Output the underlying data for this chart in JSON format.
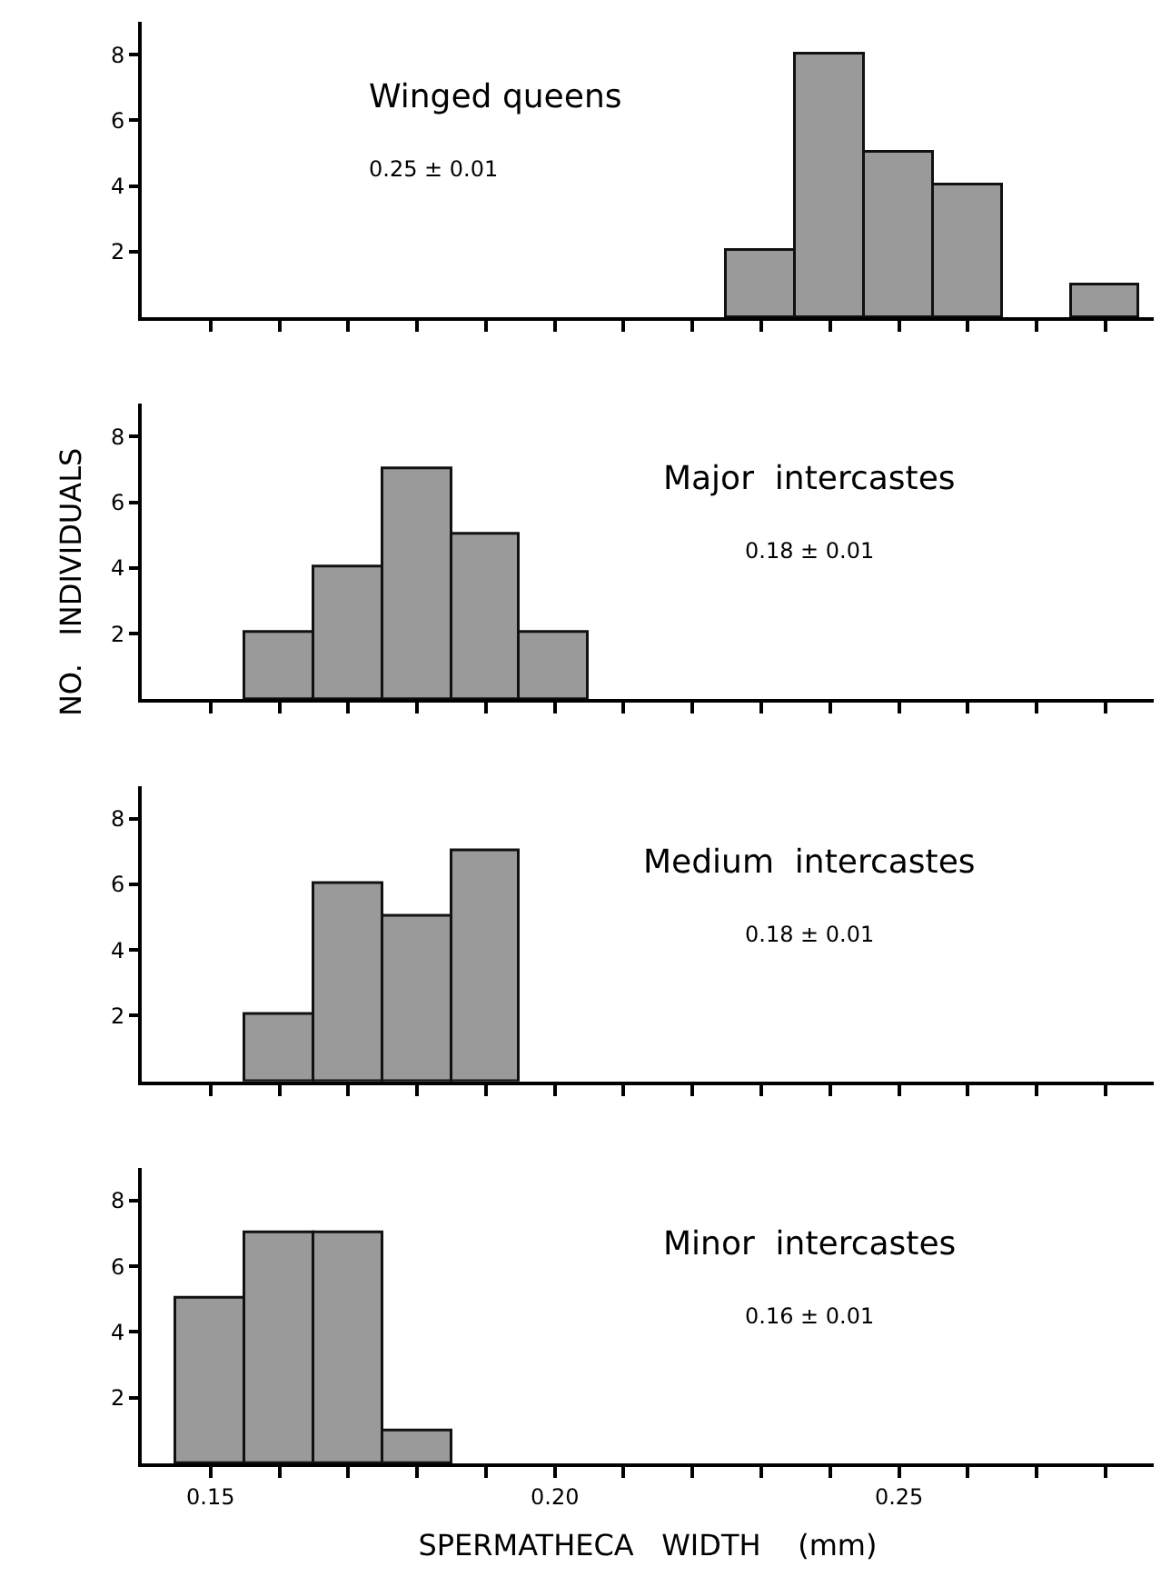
{
  "chart_data": [
    {
      "type": "histogram",
      "bins": [
        0.225,
        0.235,
        0.245,
        0.255,
        0.265,
        0.275,
        0.285
      ],
      "values": [
        2,
        8,
        5,
        4,
        0,
        1
      ],
      "color": "#9a9a9a",
      "annotations": [
        "Winged queens",
        "0.25 ± 0.01"
      ],
      "xlim": [
        0.14,
        0.287
      ],
      "ylim": [
        0,
        9
      ],
      "yticks": [
        2,
        4,
        6,
        8
      ],
      "xticks": [
        {
          "value": 0.15,
          "label": null
        },
        {
          "value": 0.16,
          "label": null
        },
        {
          "value": 0.17,
          "label": null
        },
        {
          "value": 0.18,
          "label": null
        },
        {
          "value": 0.19,
          "label": null
        },
        {
          "value": 0.2,
          "label": null
        },
        {
          "value": 0.21,
          "label": null
        },
        {
          "value": 0.22,
          "label": null
        },
        {
          "value": 0.23,
          "label": null
        },
        {
          "value": 0.24,
          "label": null
        },
        {
          "value": 0.25,
          "label": null
        },
        {
          "value": 0.26,
          "label": null
        },
        {
          "value": 0.27,
          "label": null
        },
        {
          "value": 0.28,
          "label": null
        }
      ],
      "tick_labels": "y"
    },
    {
      "type": "histogram",
      "bins": [
        0.155,
        0.165,
        0.175,
        0.185,
        0.195,
        0.205
      ],
      "values": [
        2,
        4,
        7,
        5,
        2
      ],
      "color": "#9a9a9a",
      "annotations": [
        "Major  intercastes",
        "0.18 ± 0.01"
      ],
      "ylabel": "NO.   INDIVIDUALS",
      "xlim": [
        0.14,
        0.287
      ],
      "ylim": [
        0,
        9
      ],
      "yticks": [
        2,
        4,
        6,
        8
      ],
      "xticks": [
        {
          "value": 0.15,
          "label": null
        },
        {
          "value": 0.16,
          "label": null
        },
        {
          "value": 0.17,
          "label": null
        },
        {
          "value": 0.18,
          "label": null
        },
        {
          "value": 0.19,
          "label": null
        },
        {
          "value": 0.2,
          "label": null
        },
        {
          "value": 0.21,
          "label": null
        },
        {
          "value": 0.22,
          "label": null
        },
        {
          "value": 0.23,
          "label": null
        },
        {
          "value": 0.24,
          "label": null
        },
        {
          "value": 0.25,
          "label": null
        },
        {
          "value": 0.26,
          "label": null
        },
        {
          "value": 0.27,
          "label": null
        },
        {
          "value": 0.28,
          "label": null
        }
      ],
      "tick_labels": "y"
    },
    {
      "type": "histogram",
      "bins": [
        0.155,
        0.165,
        0.175,
        0.185,
        0.195
      ],
      "values": [
        2,
        6,
        5,
        7
      ],
      "color": "#9a9a9a",
      "annotations": [
        "Medium  intercastes",
        "0.18 ± 0.01"
      ],
      "xlim": [
        0.14,
        0.287
      ],
      "ylim": [
        0,
        9
      ],
      "yticks": [
        2,
        4,
        6,
        8
      ],
      "xticks": [
        {
          "value": 0.15,
          "label": null
        },
        {
          "value": 0.16,
          "label": null
        },
        {
          "value": 0.17,
          "label": null
        },
        {
          "value": 0.18,
          "label": null
        },
        {
          "value": 0.19,
          "label": null
        },
        {
          "value": 0.2,
          "label": null
        },
        {
          "value": 0.21,
          "label": null
        },
        {
          "value": 0.22,
          "label": null
        },
        {
          "value": 0.23,
          "label": null
        },
        {
          "value": 0.24,
          "label": null
        },
        {
          "value": 0.25,
          "label": null
        },
        {
          "value": 0.26,
          "label": null
        },
        {
          "value": 0.27,
          "label": null
        },
        {
          "value": 0.28,
          "label": null
        }
      ],
      "tick_labels": "y"
    },
    {
      "type": "histogram",
      "bins": [
        0.145,
        0.155,
        0.165,
        0.175,
        0.185
      ],
      "values": [
        5,
        7,
        7,
        1
      ],
      "color": "#9a9a9a",
      "annotations": [
        "Minor  intercastes",
        "0.16 ± 0.01"
      ],
      "xlabel": "SPERMATHECA   WIDTH    (mm)",
      "xlim": [
        0.14,
        0.287
      ],
      "ylim": [
        0,
        9
      ],
      "yticks": [
        2,
        4,
        6,
        8
      ],
      "xticks": [
        {
          "value": 0.15,
          "label": "0.15"
        },
        {
          "value": 0.16,
          "label": null
        },
        {
          "value": 0.17,
          "label": null
        },
        {
          "value": 0.18,
          "label": null
        },
        {
          "value": 0.19,
          "label": null
        },
        {
          "value": 0.2,
          "label": "0.20"
        },
        {
          "value": 0.21,
          "label": null
        },
        {
          "value": 0.22,
          "label": null
        },
        {
          "value": 0.23,
          "label": null
        },
        {
          "value": 0.24,
          "label": null
        },
        {
          "value": 0.25,
          "label": "0.25"
        },
        {
          "value": 0.26,
          "label": null
        },
        {
          "value": 0.27,
          "label": null
        },
        {
          "value": 0.28,
          "label": null
        }
      ]
    }
  ]
}
